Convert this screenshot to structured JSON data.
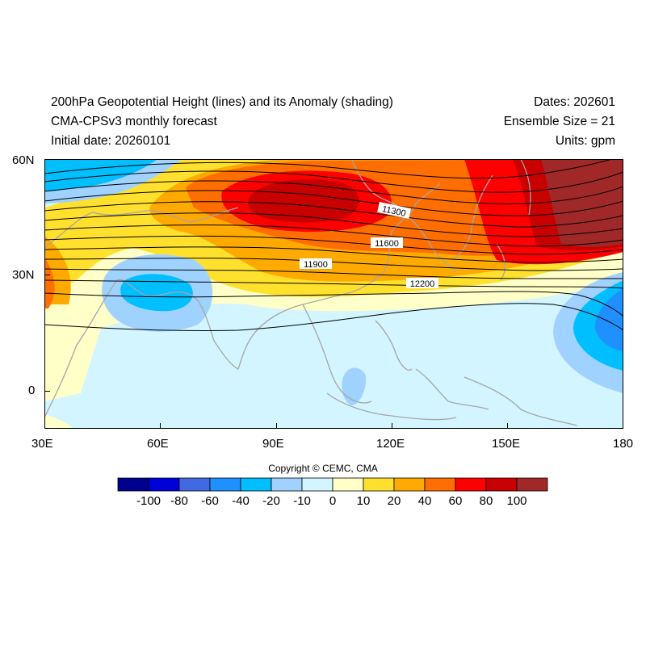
{
  "header": {
    "title": "200hPa Geopotential Height (lines) and its Anomaly (shading)",
    "subtitle": "CMA-CPSv3 monthly forecast",
    "initial_date": "Initial date: 20260101",
    "dates": "Dates: 202601",
    "ensemble": "Ensemble Size = 21",
    "units": "Units: gpm"
  },
  "axes": {
    "x_labels": [
      "30E",
      "60E",
      "90E",
      "120E",
      "150E",
      "180"
    ],
    "y_labels": [
      "60N",
      "30N",
      "0"
    ]
  },
  "contour_labels": [
    "11300",
    "11600",
    "11900",
    "12200"
  ],
  "copyright": "Copyright © CEMC, CMA",
  "colorbar": {
    "labels": [
      "-100",
      "-80",
      "-60",
      "-40",
      "-20",
      "-10",
      "0",
      "10",
      "20",
      "40",
      "60",
      "80",
      "100"
    ],
    "colors": [
      "#00008f",
      "#0000d8",
      "#4169e1",
      "#1e90ff",
      "#00bfff",
      "#a0d2ff",
      "#d2f5ff",
      "#ffffc8",
      "#ffe12d",
      "#ffaa00",
      "#ff6e00",
      "#ff0000",
      "#c80000",
      "#a02828"
    ]
  }
}
